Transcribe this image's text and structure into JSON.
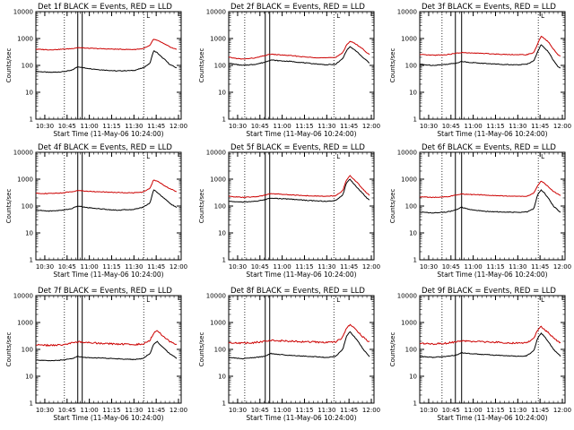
{
  "figure": {
    "title_suffix": "BLACK = Events, RED = LLD",
    "flag_label": "L",
    "ylabel": "Counts/sec",
    "xlabel": "Start Time (11-May-06 10:24:00)",
    "x_ticks": [
      {
        "t": 10.5,
        "label": "10:30"
      },
      {
        "t": 10.75,
        "label": "10:45"
      },
      {
        "t": 11.0,
        "label": "11:00"
      },
      {
        "t": 11.25,
        "label": "11:15"
      },
      {
        "t": 11.5,
        "label": "11:30"
      },
      {
        "t": 11.75,
        "label": "11:45"
      },
      {
        "t": 12.0,
        "label": "12:00"
      }
    ],
    "y_ticks": [
      {
        "v": 1,
        "label": "1"
      },
      {
        "v": 10,
        "label": "10"
      },
      {
        "v": 100,
        "label": "100"
      },
      {
        "v": 1000,
        "label": "1000"
      },
      {
        "v": 10000,
        "label": "10000"
      }
    ],
    "colors": {
      "events": "#000000",
      "lld": "#cc0000",
      "axes": "#000000"
    }
  },
  "chart_data": [
    {
      "type": "line",
      "title": "Det 1f",
      "ylabel": "Counts/sec",
      "xlabel": "Start Time (11-May-06 10:24:00)",
      "xlim": [
        10.4,
        12.03
      ],
      "ylim": [
        1,
        10000
      ],
      "yscale": "log",
      "vlines_dotted": [
        10.72,
        11.61
      ],
      "vlines_solid": [
        10.87,
        10.92
      ],
      "series": [
        {
          "name": "Events",
          "x": [
            10.4,
            10.55,
            10.7,
            10.8,
            10.87,
            10.95,
            11.1,
            11.3,
            11.5,
            11.6,
            11.68,
            11.72,
            11.76,
            11.8,
            11.85,
            11.9,
            11.95,
            11.98
          ],
          "values": [
            60,
            55,
            58,
            65,
            90,
            80,
            70,
            62,
            65,
            80,
            120,
            350,
            300,
            220,
            160,
            110,
            90,
            80
          ]
        },
        {
          "name": "LLD",
          "x": [
            10.4,
            10.55,
            10.7,
            10.8,
            10.87,
            10.95,
            11.1,
            11.3,
            11.5,
            11.6,
            11.68,
            11.72,
            11.76,
            11.8,
            11.85,
            11.9,
            11.95,
            11.98
          ],
          "values": [
            400,
            380,
            400,
            420,
            460,
            440,
            420,
            400,
            390,
            420,
            550,
            950,
            850,
            750,
            600,
            500,
            420,
            400
          ]
        }
      ]
    },
    {
      "type": "line",
      "title": "Det 2f",
      "ylabel": "Counts/sec",
      "xlabel": "Start Time (11-May-06 10:24:00)",
      "xlim": [
        10.4,
        12.03
      ],
      "ylim": [
        1,
        10000
      ],
      "yscale": "log",
      "vlines_dotted": [
        10.58,
        11.58
      ],
      "vlines_solid": [
        10.81,
        10.86
      ],
      "series": [
        {
          "name": "Events",
          "x": [
            10.4,
            10.55,
            10.7,
            10.8,
            10.87,
            10.95,
            11.1,
            11.3,
            11.5,
            11.6,
            11.68,
            11.72,
            11.76,
            11.8,
            11.85,
            11.9,
            11.95,
            11.98
          ],
          "values": [
            120,
            100,
            110,
            130,
            160,
            150,
            140,
            120,
            105,
            110,
            180,
            350,
            500,
            400,
            300,
            200,
            150,
            120
          ]
        },
        {
          "name": "LLD",
          "x": [
            10.4,
            10.55,
            10.7,
            10.8,
            10.87,
            10.95,
            11.1,
            11.3,
            11.5,
            11.6,
            11.68,
            11.72,
            11.76,
            11.8,
            11.85,
            11.9,
            11.95,
            11.98
          ],
          "values": [
            200,
            170,
            190,
            230,
            260,
            250,
            230,
            200,
            190,
            200,
            300,
            550,
            800,
            700,
            550,
            420,
            300,
            250
          ]
        }
      ]
    },
    {
      "type": "line",
      "title": "Det 3f",
      "ylabel": "Counts/sec",
      "xlabel": "Start Time (11-May-06 10:24:00)",
      "xlim": [
        10.4,
        12.03
      ],
      "ylim": [
        1,
        10000
      ],
      "yscale": "log",
      "vlines_dotted": [
        10.65,
        11.73
      ],
      "vlines_solid": [
        10.8,
        10.87
      ],
      "series": [
        {
          "name": "Events",
          "x": [
            10.4,
            10.55,
            10.7,
            10.8,
            10.87,
            10.95,
            11.1,
            11.3,
            11.5,
            11.6,
            11.68,
            11.72,
            11.76,
            11.8,
            11.85,
            11.9,
            11.95,
            11.98
          ],
          "values": [
            110,
            100,
            110,
            120,
            140,
            130,
            120,
            110,
            105,
            110,
            150,
            300,
            600,
            450,
            300,
            150,
            90,
            80
          ]
        },
        {
          "name": "LLD",
          "x": [
            10.4,
            10.55,
            10.7,
            10.8,
            10.87,
            10.95,
            11.1,
            11.3,
            11.5,
            11.6,
            11.68,
            11.72,
            11.76,
            11.8,
            11.85,
            11.9,
            11.95,
            11.98
          ],
          "values": [
            250,
            240,
            250,
            280,
            300,
            290,
            280,
            260,
            250,
            250,
            300,
            600,
            1200,
            1000,
            700,
            400,
            250,
            220
          ]
        }
      ]
    },
    {
      "type": "line",
      "title": "Det 4f",
      "ylabel": "Counts/sec",
      "xlabel": "Start Time (11-May-06 10:24:00)",
      "xlim": [
        10.4,
        12.03
      ],
      "ylim": [
        1,
        10000
      ],
      "yscale": "log",
      "vlines_dotted": [
        10.72,
        11.61
      ],
      "vlines_solid": [
        10.87,
        10.92
      ],
      "series": [
        {
          "name": "Events",
          "x": [
            10.4,
            10.55,
            10.7,
            10.8,
            10.87,
            10.95,
            11.1,
            11.3,
            11.5,
            11.6,
            11.68,
            11.72,
            11.76,
            11.8,
            11.85,
            11.9,
            11.95,
            11.98
          ],
          "values": [
            70,
            65,
            70,
            80,
            100,
            90,
            80,
            70,
            75,
            90,
            130,
            400,
            330,
            250,
            180,
            130,
            100,
            90
          ]
        },
        {
          "name": "LLD",
          "x": [
            10.4,
            10.55,
            10.7,
            10.8,
            10.87,
            10.95,
            11.1,
            11.3,
            11.5,
            11.6,
            11.68,
            11.72,
            11.76,
            11.8,
            11.85,
            11.9,
            11.95,
            11.98
          ],
          "values": [
            300,
            290,
            310,
            340,
            380,
            360,
            340,
            320,
            310,
            330,
            450,
            950,
            850,
            700,
            550,
            450,
            380,
            340
          ]
        }
      ]
    },
    {
      "type": "line",
      "title": "Det 5f",
      "ylabel": "Counts/sec",
      "xlabel": "Start Time (11-May-06 10:24:00)",
      "xlim": [
        10.4,
        12.03
      ],
      "ylim": [
        1,
        10000
      ],
      "yscale": "log",
      "vlines_dotted": [
        10.58,
        11.58
      ],
      "vlines_solid": [
        10.81,
        10.86
      ],
      "series": [
        {
          "name": "Events",
          "x": [
            10.4,
            10.55,
            10.7,
            10.8,
            10.87,
            10.95,
            11.1,
            11.3,
            11.5,
            11.6,
            11.68,
            11.72,
            11.76,
            11.8,
            11.85,
            11.9,
            11.95,
            11.98
          ],
          "values": [
            150,
            140,
            150,
            170,
            200,
            190,
            180,
            160,
            150,
            160,
            260,
            700,
            1000,
            700,
            450,
            300,
            200,
            170
          ]
        },
        {
          "name": "LLD",
          "x": [
            10.4,
            10.55,
            10.7,
            10.8,
            10.87,
            10.95,
            11.1,
            11.3,
            11.5,
            11.6,
            11.68,
            11.72,
            11.76,
            11.8,
            11.85,
            11.9,
            11.95,
            11.98
          ],
          "values": [
            230,
            210,
            220,
            250,
            290,
            280,
            260,
            240,
            230,
            240,
            380,
            900,
            1400,
            1000,
            700,
            450,
            300,
            250
          ]
        }
      ]
    },
    {
      "type": "line",
      "title": "Det 6f",
      "ylabel": "Counts/sec",
      "xlabel": "Start Time (11-May-06 10:24:00)",
      "xlim": [
        10.4,
        12.03
      ],
      "ylim": [
        1,
        10000
      ],
      "yscale": "log",
      "vlines_dotted": [
        10.65,
        11.73
      ],
      "vlines_solid": [
        10.8,
        10.87
      ],
      "series": [
        {
          "name": "Events",
          "x": [
            10.4,
            10.55,
            10.7,
            10.8,
            10.87,
            10.95,
            11.1,
            11.3,
            11.5,
            11.6,
            11.68,
            11.72,
            11.76,
            11.8,
            11.85,
            11.9,
            11.95,
            11.98
          ],
          "values": [
            60,
            55,
            60,
            70,
            90,
            75,
            65,
            60,
            58,
            60,
            80,
            250,
            400,
            300,
            180,
            100,
            70,
            60
          ]
        },
        {
          "name": "LLD",
          "x": [
            10.4,
            10.55,
            10.7,
            10.8,
            10.87,
            10.95,
            11.1,
            11.3,
            11.5,
            11.6,
            11.68,
            11.72,
            11.76,
            11.8,
            11.85,
            11.9,
            11.95,
            11.98
          ],
          "values": [
            220,
            210,
            220,
            250,
            280,
            270,
            260,
            240,
            230,
            230,
            300,
            550,
            850,
            700,
            500,
            350,
            280,
            250
          ]
        }
      ]
    },
    {
      "type": "line",
      "title": "Det 7f",
      "ylabel": "Counts/sec",
      "xlabel": "Start Time (11-May-06 10:24:00)",
      "xlim": [
        10.4,
        12.03
      ],
      "ylim": [
        1,
        10000
      ],
      "yscale": "log",
      "vlines_dotted": [
        10.72,
        11.61
      ],
      "vlines_solid": [
        10.87,
        10.92
      ],
      "series": [
        {
          "name": "Events",
          "x": [
            10.4,
            10.55,
            10.7,
            10.8,
            10.87,
            10.95,
            11.1,
            11.3,
            11.5,
            11.6,
            11.68,
            11.72,
            11.76,
            11.8,
            11.85,
            11.9,
            11.95,
            11.98
          ],
          "values": [
            40,
            38,
            40,
            45,
            55,
            50,
            48,
            45,
            42,
            45,
            70,
            150,
            200,
            140,
            100,
            70,
            55,
            45
          ]
        },
        {
          "name": "LLD",
          "x": [
            10.4,
            10.55,
            10.7,
            10.8,
            10.87,
            10.95,
            11.1,
            11.3,
            11.5,
            11.6,
            11.68,
            11.72,
            11.76,
            11.8,
            11.85,
            11.9,
            11.95,
            11.98
          ],
          "values": [
            150,
            140,
            150,
            170,
            190,
            180,
            170,
            160,
            150,
            160,
            220,
            400,
            500,
            380,
            280,
            200,
            170,
            150
          ]
        }
      ]
    },
    {
      "type": "line",
      "title": "Det 8f",
      "ylabel": "Counts/sec",
      "xlabel": "Start Time (11-May-06 10:24:00)",
      "xlim": [
        10.4,
        12.03
      ],
      "ylim": [
        1,
        10000
      ],
      "yscale": "log",
      "vlines_dotted": [
        10.58,
        11.58
      ],
      "vlines_solid": [
        10.81,
        10.86
      ],
      "series": [
        {
          "name": "Events",
          "x": [
            10.4,
            10.55,
            10.7,
            10.8,
            10.87,
            10.95,
            11.1,
            11.3,
            11.5,
            11.6,
            11.68,
            11.72,
            11.76,
            11.8,
            11.85,
            11.9,
            11.95,
            11.98
          ],
          "values": [
            50,
            45,
            50,
            55,
            70,
            65,
            60,
            55,
            50,
            55,
            100,
            300,
            450,
            320,
            200,
            110,
            70,
            55
          ]
        },
        {
          "name": "LLD",
          "x": [
            10.4,
            10.55,
            10.7,
            10.8,
            10.87,
            10.95,
            11.1,
            11.3,
            11.5,
            11.6,
            11.68,
            11.72,
            11.76,
            11.8,
            11.85,
            11.9,
            11.95,
            11.98
          ],
          "values": [
            180,
            170,
            180,
            200,
            220,
            210,
            200,
            190,
            180,
            190,
            280,
            600,
            850,
            650,
            450,
            300,
            220,
            190
          ]
        }
      ]
    },
    {
      "type": "line",
      "title": "Det 9f",
      "ylabel": "Counts/sec",
      "xlabel": "Start Time (11-May-06 10:24:00)",
      "xlim": [
        10.4,
        12.03
      ],
      "ylim": [
        1,
        10000
      ],
      "yscale": "log",
      "vlines_dotted": [
        10.65,
        11.73
      ],
      "vlines_solid": [
        10.8,
        10.87
      ],
      "series": [
        {
          "name": "Events",
          "x": [
            10.4,
            10.55,
            10.7,
            10.8,
            10.87,
            10.95,
            11.1,
            11.3,
            11.5,
            11.6,
            11.68,
            11.72,
            11.76,
            11.8,
            11.85,
            11.9,
            11.95,
            11.98
          ],
          "values": [
            55,
            50,
            55,
            60,
            75,
            70,
            65,
            60,
            55,
            58,
            90,
            250,
            400,
            300,
            180,
            100,
            70,
            55
          ]
        },
        {
          "name": "LLD",
          "x": [
            10.4,
            10.55,
            10.7,
            10.8,
            10.87,
            10.95,
            11.1,
            11.3,
            11.5,
            11.6,
            11.68,
            11.72,
            11.76,
            11.8,
            11.85,
            11.9,
            11.95,
            11.98
          ],
          "values": [
            170,
            160,
            170,
            190,
            210,
            200,
            190,
            180,
            170,
            175,
            250,
            500,
            700,
            550,
            400,
            260,
            200,
            180
          ]
        }
      ]
    }
  ]
}
